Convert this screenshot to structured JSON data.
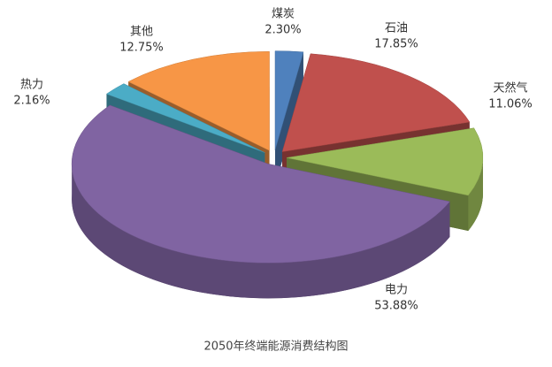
{
  "chart_data": {
    "type": "pie",
    "title": "2050年终端能源消费结构图",
    "categories": [
      "煤炭",
      "石油",
      "天然气",
      "电力",
      "热力",
      "其他"
    ],
    "values": [
      2.3,
      17.85,
      11.06,
      53.88,
      2.16,
      12.75
    ],
    "value_labels": [
      "2.30%",
      "17.85%",
      "11.06%",
      "53.88%",
      "2.16%",
      "12.75%"
    ],
    "colors": [
      "#4f81bd",
      "#c0504d",
      "#9bbb59",
      "#8064a2",
      "#4bacc6",
      "#f79646"
    ]
  }
}
